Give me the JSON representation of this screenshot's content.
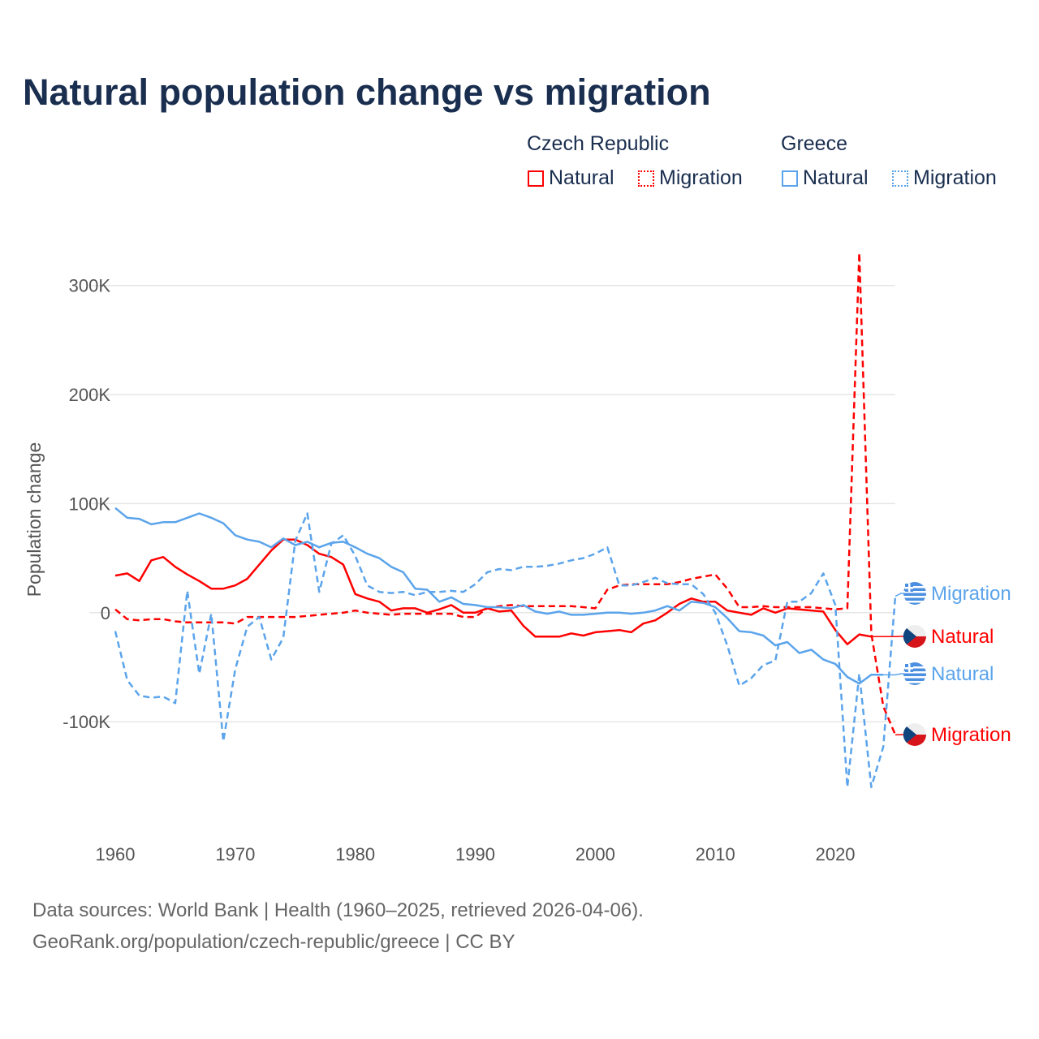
{
  "chart_data": {
    "type": "line",
    "title": "Natural population change vs migration",
    "xlabel": "",
    "ylabel": "Population change",
    "xlim": [
      1960,
      2025
    ],
    "ylim": [
      -190000,
      340000
    ],
    "grid": true,
    "x_ticks": [
      1960,
      1970,
      1980,
      1990,
      2000,
      2010,
      2020
    ],
    "x_tick_labels": [
      "1960",
      "1970",
      "1980",
      "1990",
      "2000",
      "2010",
      "2020"
    ],
    "y_ticks": [
      -100000,
      0,
      100000,
      200000,
      300000
    ],
    "y_tick_labels": [
      "-100K",
      "0",
      "100K",
      "200K",
      "300K"
    ],
    "legend": {
      "placement": "top-right",
      "groups": [
        {
          "name": "Czech Republic",
          "items": [
            "Natural",
            "Migration"
          ]
        },
        {
          "name": "Greece",
          "items": [
            "Natural",
            "Migration"
          ]
        }
      ]
    },
    "series": [
      {
        "name": "Czech Republic Natural",
        "country": "Czech Republic",
        "kind": "Natural",
        "label": "Natural",
        "color": "#ff0000",
        "dash": false,
        "x": [
          1960,
          1961,
          1962,
          1963,
          1964,
          1965,
          1966,
          1967,
          1968,
          1969,
          1970,
          1971,
          1972,
          1973,
          1974,
          1975,
          1976,
          1977,
          1978,
          1979,
          1980,
          1981,
          1982,
          1983,
          1984,
          1985,
          1986,
          1987,
          1988,
          1989,
          1990,
          1991,
          1992,
          1993,
          1994,
          1995,
          1996,
          1997,
          1998,
          1999,
          2000,
          2001,
          2002,
          2003,
          2004,
          2005,
          2006,
          2007,
          2008,
          2009,
          2010,
          2011,
          2012,
          2013,
          2014,
          2015,
          2016,
          2017,
          2018,
          2019,
          2020,
          2021,
          2022,
          2023
        ],
        "values": [
          34000,
          36000,
          29000,
          48000,
          51000,
          42000,
          35000,
          29000,
          22000,
          22000,
          25000,
          31000,
          44000,
          57000,
          67000,
          67000,
          62000,
          54000,
          51000,
          44000,
          17000,
          13000,
          10000,
          2000,
          4000,
          4000,
          0,
          3000,
          7000,
          0,
          0,
          4000,
          1000,
          2000,
          -12000,
          -22000,
          -22000,
          -22000,
          -19000,
          -21000,
          -18000,
          -17000,
          -16000,
          -18000,
          -10000,
          -7000,
          0,
          8000,
          13000,
          10000,
          10000,
          2000,
          0,
          -2000,
          4000,
          0,
          4000,
          3000,
          2000,
          1000,
          -16000,
          -29000,
          -20000,
          -22000
        ]
      },
      {
        "name": "Czech Republic Migration",
        "country": "Czech Republic",
        "kind": "Migration",
        "label": "Migration",
        "color": "#ff0000",
        "dash": true,
        "x": [
          1960,
          1961,
          1962,
          1963,
          1964,
          1965,
          1966,
          1967,
          1968,
          1969,
          1970,
          1971,
          1972,
          1973,
          1974,
          1975,
          1976,
          1977,
          1978,
          1979,
          1980,
          1981,
          1982,
          1983,
          1984,
          1985,
          1986,
          1987,
          1988,
          1989,
          1990,
          1991,
          1992,
          1993,
          1994,
          1995,
          1996,
          1997,
          1998,
          1999,
          2000,
          2001,
          2002,
          2003,
          2004,
          2005,
          2006,
          2007,
          2008,
          2009,
          2010,
          2011,
          2012,
          2013,
          2014,
          2015,
          2016,
          2017,
          2018,
          2019,
          2020,
          2021,
          2022,
          2023,
          2024,
          2025
        ],
        "values": [
          3000,
          -6000,
          -7000,
          -6000,
          -6000,
          -8000,
          -9000,
          -9000,
          -9000,
          -9000,
          -10000,
          -4000,
          -4000,
          -4000,
          -4000,
          -4000,
          -3000,
          -2000,
          -1000,
          0,
          2000,
          0,
          -1000,
          -2000,
          -1000,
          -1000,
          -1000,
          -1000,
          -1000,
          -4000,
          -4000,
          4000,
          6000,
          7000,
          6000,
          6000,
          6000,
          6000,
          6000,
          5000,
          4000,
          21000,
          25000,
          26000,
          26000,
          26000,
          26000,
          28000,
          31000,
          33000,
          35000,
          22000,
          5000,
          5000,
          6000,
          5000,
          5000,
          5000,
          5000,
          4000,
          3000,
          4000,
          330000,
          -19000,
          -86000,
          -112000
        ]
      },
      {
        "name": "Greece Natural",
        "country": "Greece",
        "kind": "Natural",
        "label": "Natural",
        "color": "#5ba4eb",
        "dash": false,
        "x": [
          1960,
          1961,
          1962,
          1963,
          1964,
          1965,
          1966,
          1967,
          1968,
          1969,
          1970,
          1971,
          1972,
          1973,
          1974,
          1975,
          1976,
          1977,
          1978,
          1979,
          1980,
          1981,
          1982,
          1983,
          1984,
          1985,
          1986,
          1987,
          1988,
          1989,
          1990,
          1991,
          1992,
          1993,
          1994,
          1995,
          1996,
          1997,
          1998,
          1999,
          2000,
          2001,
          2002,
          2003,
          2004,
          2005,
          2006,
          2007,
          2008,
          2009,
          2010,
          2011,
          2012,
          2013,
          2014,
          2015,
          2016,
          2017,
          2018,
          2019,
          2020,
          2021,
          2022,
          2023,
          2024
        ],
        "values": [
          96000,
          87000,
          86000,
          81000,
          83000,
          83000,
          87000,
          91000,
          87000,
          82000,
          71000,
          67000,
          65000,
          60000,
          68000,
          62000,
          65000,
          60000,
          64000,
          65000,
          60000,
          54000,
          50000,
          42000,
          37000,
          22000,
          21000,
          10000,
          14000,
          8000,
          7000,
          5000,
          5000,
          4000,
          7000,
          1000,
          -1000,
          1000,
          -2000,
          -2000,
          -1000,
          0,
          0,
          -1000,
          0,
          2000,
          6000,
          2000,
          10000,
          9000,
          5000,
          -5000,
          -17000,
          -18000,
          -21000,
          -30000,
          -27000,
          -37000,
          -34000,
          -43000,
          -47000,
          -59000,
          -65000,
          -57000,
          -57000
        ]
      },
      {
        "name": "Greece Migration",
        "country": "Greece",
        "kind": "Migration",
        "label": "Migration",
        "color": "#5ba4eb",
        "dash": true,
        "x": [
          1960,
          1961,
          1962,
          1963,
          1964,
          1965,
          1966,
          1967,
          1968,
          1969,
          1970,
          1971,
          1972,
          1973,
          1974,
          1975,
          1976,
          1977,
          1978,
          1979,
          1980,
          1981,
          1982,
          1983,
          1984,
          1985,
          1986,
          1987,
          1988,
          1989,
          1990,
          1991,
          1992,
          1993,
          1994,
          1995,
          1996,
          1997,
          1998,
          1999,
          2000,
          2001,
          2002,
          2003,
          2004,
          2005,
          2006,
          2007,
          2008,
          2009,
          2010,
          2011,
          2012,
          2013,
          2014,
          2015,
          2016,
          2017,
          2018,
          2019,
          2020,
          2021,
          2022,
          2023,
          2024,
          2025
        ],
        "values": [
          -17000,
          -62000,
          -76000,
          -78000,
          -77000,
          -83000,
          20000,
          -56000,
          -1000,
          -118000,
          -52000,
          -13000,
          -4000,
          -43000,
          -23000,
          66000,
          91000,
          19000,
          63000,
          71000,
          52000,
          25000,
          19000,
          18000,
          19000,
          16000,
          19000,
          19000,
          20000,
          19000,
          26000,
          37000,
          40000,
          39000,
          42000,
          42000,
          43000,
          45000,
          48000,
          50000,
          54000,
          60000,
          25000,
          25000,
          28000,
          32000,
          27000,
          26000,
          26000,
          17000,
          0,
          -30000,
          -67000,
          -60000,
          -48000,
          -44000,
          10000,
          10000,
          18000,
          36000,
          7000,
          -160000,
          -56000,
          -160000,
          -123000,
          15000
        ]
      }
    ]
  },
  "footer": {
    "line1": "Data sources: World Bank | Health (1960–2025, retrieved 2026-04-06).",
    "line2": "GeoRank.org/population/czech-republic/greece | CC BY"
  }
}
